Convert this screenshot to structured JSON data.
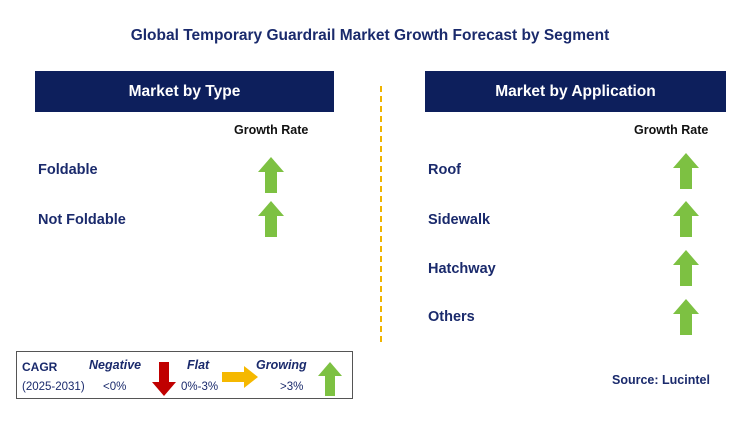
{
  "title": "Global Temporary Guardrail Market Growth Forecast by Segment",
  "type_panel": {
    "header": "Market by Type",
    "growth_rate_label": "Growth Rate",
    "rows": [
      {
        "label": "Foldable",
        "trend": "growing"
      },
      {
        "label": "Not Foldable",
        "trend": "growing"
      }
    ]
  },
  "application_panel": {
    "header": "Market by Application",
    "growth_rate_label": "Growth Rate",
    "rows": [
      {
        "label": "Roof",
        "trend": "growing"
      },
      {
        "label": "Sidewalk",
        "trend": "growing"
      },
      {
        "label": "Hatchway",
        "trend": "growing"
      },
      {
        "label": "Others",
        "trend": "growing"
      }
    ]
  },
  "legend": {
    "cagr_label": "CAGR",
    "period": "(2025-2031)",
    "negative": {
      "label": "Negative",
      "range": "<0%",
      "icon": "red-down-arrow-icon"
    },
    "flat": {
      "label": "Flat",
      "range": "0%-3%",
      "icon": "orange-right-arrow-icon"
    },
    "growing": {
      "label": "Growing",
      "range": ">3%",
      "icon": "green-up-arrow-icon"
    }
  },
  "source": "Source: Lucintel",
  "colors": {
    "header_bg": "#0d1f5c",
    "title_text": "#1a2a6c",
    "growing": "#7dc142",
    "negative": "#c00000",
    "flat": "#f5b800",
    "divider": "#f0b400"
  }
}
